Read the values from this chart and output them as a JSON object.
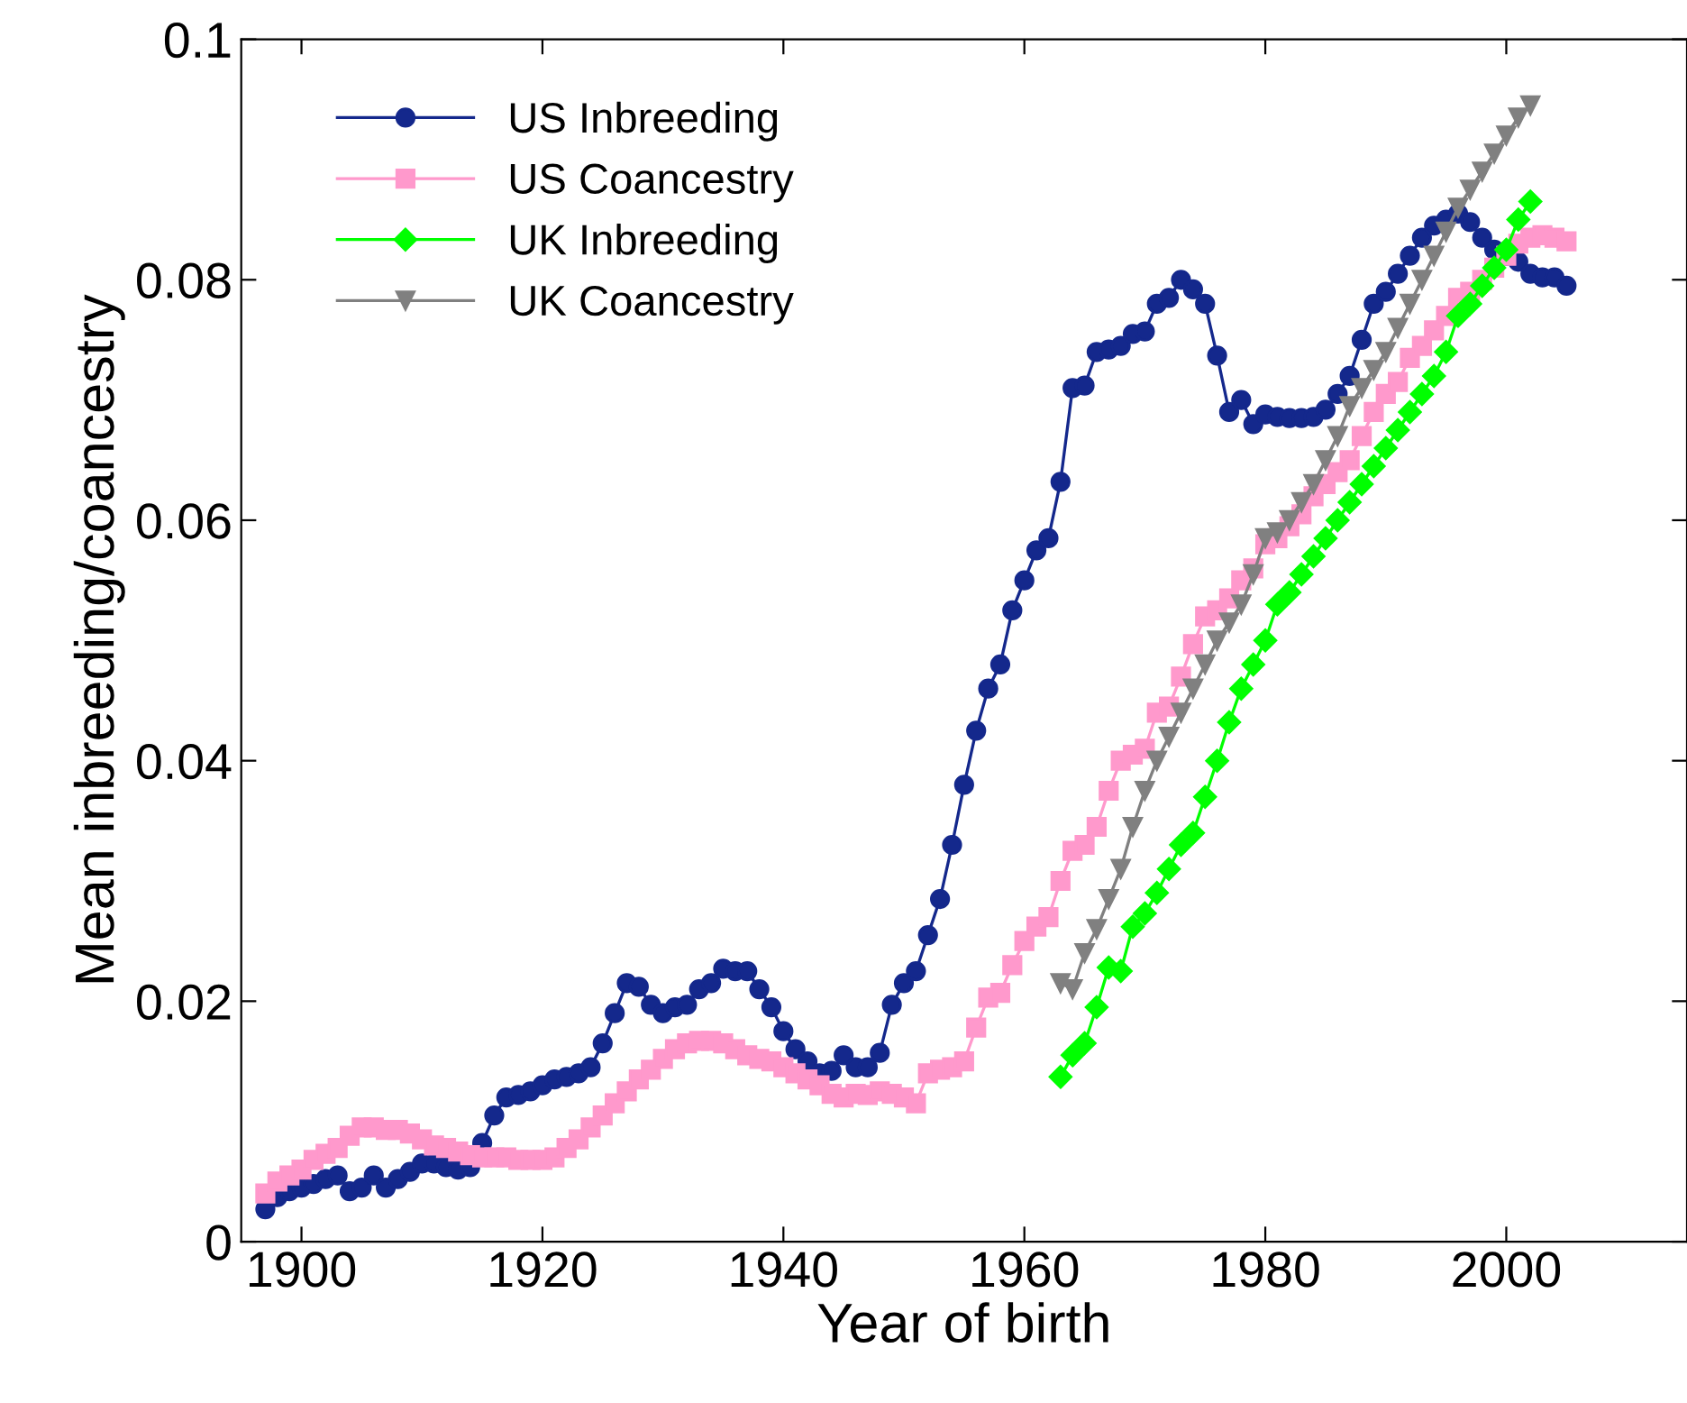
{
  "chart_data": {
    "type": "line",
    "xlabel": "Year of birth",
    "ylabel": "Mean inbreeding/coancestry",
    "xlim": [
      1895,
      2015
    ],
    "xticks": [
      1900,
      1920,
      1940,
      1960,
      1980,
      2000
    ],
    "ylim": [
      0,
      0.1
    ],
    "yticks": [
      0,
      0.02,
      0.04,
      0.06,
      0.08,
      0.1
    ],
    "grid": false,
    "legend": "top left",
    "series": [
      {
        "name": "US Inbreeding",
        "color": "#14288c",
        "marker": "circle",
        "x": [
          1897,
          1898,
          1899,
          1900,
          1901,
          1902,
          1903,
          1904,
          1905,
          1906,
          1907,
          1908,
          1909,
          1910,
          1911,
          1912,
          1913,
          1914,
          1915,
          1916,
          1917,
          1918,
          1919,
          1920,
          1921,
          1922,
          1923,
          1924,
          1925,
          1926,
          1927,
          1928,
          1929,
          1930,
          1931,
          1932,
          1933,
          1934,
          1935,
          1936,
          1937,
          1938,
          1939,
          1940,
          1941,
          1942,
          1943,
          1944,
          1945,
          1946,
          1947,
          1948,
          1949,
          1950,
          1951,
          1952,
          1953,
          1954,
          1955,
          1956,
          1957,
          1958,
          1959,
          1960,
          1961,
          1962,
          1963,
          1964,
          1965,
          1966,
          1967,
          1968,
          1969,
          1970,
          1971,
          1972,
          1973,
          1974,
          1975,
          1976,
          1977,
          1978,
          1979,
          1980,
          1981,
          1982,
          1983,
          1984,
          1985,
          1986,
          1987,
          1988,
          1989,
          1990,
          1991,
          1992,
          1993,
          1994,
          1995,
          1996,
          1997,
          1998,
          1999,
          2000,
          2001,
          2002,
          2003,
          2004,
          2005
        ],
        "values": [
          0.0027,
          0.0037,
          0.0042,
          0.0045,
          0.0048,
          0.0052,
          0.0055,
          0.0042,
          0.0045,
          0.0055,
          0.0045,
          0.0052,
          0.0058,
          0.0065,
          0.0065,
          0.0062,
          0.006,
          0.0062,
          0.0082,
          0.0105,
          0.012,
          0.0122,
          0.0125,
          0.013,
          0.0135,
          0.0137,
          0.014,
          0.0145,
          0.0165,
          0.019,
          0.0215,
          0.0212,
          0.0197,
          0.019,
          0.0195,
          0.0197,
          0.021,
          0.0215,
          0.0227,
          0.0225,
          0.0225,
          0.021,
          0.0195,
          0.0175,
          0.016,
          0.015,
          0.014,
          0.0142,
          0.0155,
          0.0145,
          0.0145,
          0.0157,
          0.0197,
          0.0215,
          0.0225,
          0.0255,
          0.0285,
          0.033,
          0.038,
          0.0425,
          0.046,
          0.048,
          0.0525,
          0.055,
          0.0575,
          0.0585,
          0.0632,
          0.071,
          0.0712,
          0.074,
          0.0742,
          0.0745,
          0.0755,
          0.0757,
          0.078,
          0.0785,
          0.08,
          0.0792,
          0.078,
          0.0737,
          0.069,
          0.07,
          0.068,
          0.0688,
          0.0686,
          0.0685,
          0.0685,
          0.0686,
          0.0692,
          0.0705,
          0.072,
          0.075,
          0.078,
          0.079,
          0.0805,
          0.082,
          0.0835,
          0.0845,
          0.085,
          0.0855,
          0.0848,
          0.0835,
          0.0825,
          0.082,
          0.0815,
          0.0805,
          0.0802,
          0.0802,
          0.0795
        ]
      },
      {
        "name": "US Coancestry",
        "color": "#ff99cc",
        "marker": "square",
        "x": [
          1897,
          1898,
          1899,
          1900,
          1901,
          1902,
          1903,
          1904,
          1905,
          1906,
          1907,
          1908,
          1909,
          1910,
          1911,
          1912,
          1913,
          1914,
          1915,
          1916,
          1917,
          1918,
          1919,
          1920,
          1921,
          1922,
          1923,
          1924,
          1925,
          1926,
          1927,
          1928,
          1929,
          1930,
          1931,
          1932,
          1933,
          1934,
          1935,
          1936,
          1937,
          1938,
          1939,
          1940,
          1941,
          1942,
          1943,
          1944,
          1945,
          1946,
          1947,
          1948,
          1949,
          1950,
          1951,
          1952,
          1953,
          1954,
          1955,
          1956,
          1957,
          1958,
          1959,
          1960,
          1961,
          1962,
          1963,
          1964,
          1965,
          1966,
          1967,
          1968,
          1969,
          1970,
          1971,
          1972,
          1973,
          1974,
          1975,
          1976,
          1977,
          1978,
          1979,
          1980,
          1981,
          1982,
          1983,
          1984,
          1985,
          1986,
          1987,
          1988,
          1989,
          1990,
          1991,
          1992,
          1993,
          1994,
          1995,
          1996,
          1997,
          1998,
          1999,
          2000,
          2001,
          2002,
          2003,
          2004,
          2005
        ],
        "values": [
          0.004,
          0.005,
          0.0055,
          0.006,
          0.0068,
          0.0073,
          0.0078,
          0.0088,
          0.0095,
          0.0095,
          0.0093,
          0.0093,
          0.009,
          0.0085,
          0.008,
          0.0078,
          0.0075,
          0.0072,
          0.007,
          0.007,
          0.007,
          0.0068,
          0.0068,
          0.0068,
          0.007,
          0.0078,
          0.0085,
          0.0095,
          0.0105,
          0.0115,
          0.0125,
          0.0135,
          0.0143,
          0.0152,
          0.016,
          0.0165,
          0.0167,
          0.0167,
          0.0165,
          0.016,
          0.0155,
          0.0152,
          0.015,
          0.0145,
          0.014,
          0.0135,
          0.013,
          0.0123,
          0.012,
          0.0123,
          0.0122,
          0.0125,
          0.0123,
          0.012,
          0.0115,
          0.014,
          0.0143,
          0.0145,
          0.015,
          0.0178,
          0.0203,
          0.0207,
          0.023,
          0.025,
          0.0262,
          0.027,
          0.03,
          0.0325,
          0.033,
          0.0345,
          0.0375,
          0.04,
          0.0405,
          0.041,
          0.044,
          0.0445,
          0.047,
          0.0497,
          0.052,
          0.0525,
          0.0535,
          0.055,
          0.056,
          0.058,
          0.0585,
          0.0595,
          0.0605,
          0.062,
          0.063,
          0.064,
          0.065,
          0.067,
          0.069,
          0.0705,
          0.0715,
          0.0735,
          0.0745,
          0.0758,
          0.077,
          0.0785,
          0.079,
          0.08,
          0.081,
          0.082,
          0.083,
          0.0835,
          0.0837,
          0.0835,
          0.0832
        ]
      },
      {
        "name": "UK Inbreeding",
        "color": "#00ff00",
        "marker": "diamond",
        "x": [
          1963,
          1964,
          1965,
          1966,
          1967,
          1968,
          1969,
          1970,
          1971,
          1972,
          1973,
          1974,
          1975,
          1976,
          1977,
          1978,
          1979,
          1980,
          1981,
          1982,
          1983,
          1984,
          1985,
          1986,
          1987,
          1988,
          1989,
          1990,
          1991,
          1992,
          1993,
          1994,
          1995,
          1996,
          1997,
          1998,
          1999,
          2000,
          2001,
          2002
        ],
        "values": [
          0.0137,
          0.0155,
          0.0165,
          0.0195,
          0.0228,
          0.0225,
          0.0262,
          0.0273,
          0.029,
          0.031,
          0.033,
          0.034,
          0.037,
          0.04,
          0.0432,
          0.046,
          0.048,
          0.05,
          0.053,
          0.054,
          0.0555,
          0.057,
          0.0585,
          0.06,
          0.0615,
          0.063,
          0.0645,
          0.066,
          0.0675,
          0.069,
          0.0705,
          0.072,
          0.074,
          0.077,
          0.078,
          0.0795,
          0.081,
          0.0825,
          0.085,
          0.0865
        ]
      },
      {
        "name": "UK Coancestry",
        "color": "#808080",
        "marker": "triangle",
        "x": [
          1963,
          1964,
          1965,
          1966,
          1967,
          1968,
          1969,
          1970,
          1971,
          1972,
          1973,
          1974,
          1975,
          1976,
          1977,
          1978,
          1979,
          1980,
          1981,
          1982,
          1983,
          1984,
          1985,
          1986,
          1987,
          1988,
          1989,
          1990,
          1991,
          1992,
          1993,
          1994,
          1995,
          1996,
          1997,
          1998,
          1999,
          2000,
          2001,
          2002
        ],
        "values": [
          0.0215,
          0.021,
          0.024,
          0.026,
          0.0285,
          0.031,
          0.0345,
          0.0375,
          0.04,
          0.042,
          0.044,
          0.046,
          0.048,
          0.05,
          0.0515,
          0.053,
          0.0555,
          0.0585,
          0.059,
          0.06,
          0.0615,
          0.063,
          0.065,
          0.067,
          0.0695,
          0.071,
          0.0725,
          0.074,
          0.076,
          0.078,
          0.08,
          0.082,
          0.084,
          0.086,
          0.0875,
          0.089,
          0.0905,
          0.092,
          0.0935,
          0.0945
        ]
      }
    ]
  }
}
